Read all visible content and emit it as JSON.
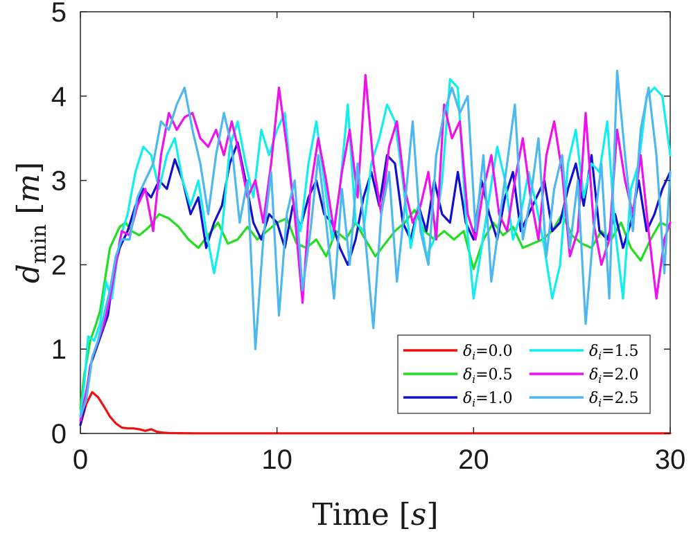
{
  "chart_data": {
    "type": "line",
    "title": "",
    "xlabel": "Time",
    "xlabel_unit": "s",
    "ylabel": "d",
    "ylabel_subscript": "min",
    "ylabel_unit": "m",
    "xlim": [
      0,
      30
    ],
    "ylim": [
      0,
      5
    ],
    "xticks": [
      0,
      10,
      20,
      30
    ],
    "yticks": [
      0,
      1,
      2,
      3,
      4,
      5
    ],
    "grid": false,
    "legend_position": "bottom-right",
    "legend_columns": 2,
    "series": [
      {
        "name": "δi=0.0",
        "symbol": "δ",
        "sub": "i",
        "eq": "=0.0",
        "color": "#ee1111",
        "x": [
          0,
          0.3,
          0.6,
          0.9,
          1.2,
          1.5,
          1.8,
          2.1,
          2.4,
          2.7,
          3.0,
          3.3,
          3.6,
          3.9,
          4.2,
          4.5,
          5,
          6,
          8,
          10,
          15,
          20,
          25,
          30
        ],
        "y": [
          0.1,
          0.35,
          0.49,
          0.43,
          0.32,
          0.2,
          0.12,
          0.07,
          0.06,
          0.06,
          0.05,
          0.03,
          0.05,
          0.02,
          0.01,
          0.005,
          0.003,
          0.002,
          0.002,
          0.002,
          0.002,
          0.002,
          0.002,
          0.002
        ]
      },
      {
        "name": "δi=0.5",
        "symbol": "δ",
        "sub": "i",
        "eq": "=0.5",
        "color": "#22dd22",
        "x": [
          0,
          0.2,
          0.5,
          0.8,
          1.0,
          1.3,
          1.5,
          1.7,
          2.0,
          2.3,
          2.6,
          3.0,
          3.5,
          4.0,
          4.5,
          5.0,
          5.5,
          6.0,
          6.5,
          7.0,
          7.5,
          8.0,
          8.5,
          9.0,
          9.5,
          10.0,
          10.5,
          11.0,
          11.5,
          12.0,
          12.5,
          13.0,
          13.5,
          14.0,
          14.5,
          15.0,
          15.5,
          16.0,
          16.5,
          17.0,
          17.5,
          18.0,
          18.5,
          19.0,
          19.5,
          20.0,
          20.5,
          21.0,
          21.5,
          22.0,
          22.5,
          23.0,
          23.5,
          24.0,
          24.5,
          25.0,
          25.5,
          26.0,
          26.5,
          27.0,
          27.5,
          28.0,
          28.5,
          29.0,
          29.5,
          30.0
        ],
        "y": [
          0.3,
          0.7,
          1.1,
          1.3,
          1.45,
          1.9,
          2.2,
          2.3,
          2.45,
          2.5,
          2.4,
          2.35,
          2.45,
          2.6,
          2.55,
          2.45,
          2.3,
          2.2,
          2.35,
          2.5,
          2.25,
          2.3,
          2.45,
          2.3,
          2.4,
          2.5,
          2.55,
          2.25,
          2.2,
          2.3,
          2.1,
          2.4,
          2.3,
          2.5,
          2.3,
          2.1,
          2.25,
          2.4,
          2.5,
          2.65,
          2.4,
          2.3,
          2.4,
          2.3,
          2.4,
          1.95,
          2.3,
          2.5,
          2.35,
          2.45,
          2.2,
          2.25,
          2.3,
          2.4,
          2.6,
          2.35,
          2.25,
          2.2,
          2.4,
          2.3,
          2.5,
          2.2,
          2.05,
          2.3,
          2.5,
          2.45
        ]
      },
      {
        "name": "δi=1.0",
        "symbol": "δ",
        "sub": "i",
        "eq": "=1.0",
        "color": "#1111cc",
        "x": [
          0,
          0.2,
          0.5,
          0.8,
          1.1,
          1.4,
          1.7,
          2.0,
          2.4,
          2.8,
          3.2,
          3.6,
          4.0,
          4.4,
          4.8,
          5.2,
          5.6,
          6.0,
          6.4,
          6.8,
          7.2,
          7.6,
          8.0,
          8.4,
          8.8,
          9.2,
          9.6,
          10.0,
          10.4,
          10.8,
          11.2,
          11.6,
          12.0,
          12.4,
          12.8,
          13.2,
          13.6,
          14.0,
          14.4,
          14.8,
          15.2,
          15.6,
          16.0,
          16.4,
          16.8,
          17.2,
          17.6,
          18.0,
          18.4,
          18.8,
          19.2,
          19.6,
          20.0,
          20.4,
          20.8,
          21.2,
          21.6,
          22.0,
          22.4,
          22.8,
          23.2,
          23.6,
          24.0,
          24.4,
          24.8,
          25.2,
          25.6,
          26.0,
          26.4,
          26.8,
          27.2,
          27.6,
          28.0,
          28.4,
          28.8,
          29.2,
          29.6,
          30.0
        ],
        "y": [
          0.1,
          0.3,
          0.8,
          1.0,
          1.2,
          1.4,
          1.9,
          2.2,
          2.4,
          2.7,
          2.9,
          2.8,
          3.0,
          2.9,
          3.25,
          3.0,
          2.6,
          2.8,
          2.2,
          2.5,
          2.7,
          3.2,
          3.45,
          3.0,
          2.5,
          2.3,
          2.6,
          2.5,
          2.2,
          2.7,
          2.45,
          2.8,
          3.0,
          2.6,
          2.5,
          2.2,
          2.0,
          2.3,
          2.8,
          3.1,
          2.7,
          3.3,
          3.2,
          2.5,
          2.3,
          2.7,
          2.4,
          3.0,
          2.6,
          2.5,
          3.1,
          2.5,
          2.3,
          3.0,
          2.6,
          2.3,
          2.8,
          3.1,
          2.4,
          2.6,
          2.8,
          3.0,
          2.4,
          2.5,
          2.9,
          3.2,
          2.7,
          3.3,
          2.4,
          2.3,
          2.6,
          2.2,
          2.5,
          3.0,
          2.4,
          2.6,
          2.9,
          3.1
        ]
      },
      {
        "name": "δi=1.5",
        "symbol": "δ",
        "sub": "i",
        "eq": "=1.5",
        "color": "#11eeee",
        "x": [
          0,
          0.2,
          0.4,
          0.7,
          1.0,
          1.3,
          1.6,
          2.0,
          2.4,
          2.8,
          3.2,
          3.6,
          4.0,
          4.4,
          4.8,
          5.2,
          5.6,
          6.0,
          6.4,
          6.8,
          7.2,
          7.6,
          8.0,
          8.4,
          8.8,
          9.2,
          9.6,
          10.0,
          10.4,
          10.8,
          11.2,
          11.6,
          12.0,
          12.4,
          12.8,
          13.2,
          13.6,
          14.0,
          14.4,
          14.8,
          15.2,
          15.6,
          16.0,
          16.4,
          16.8,
          17.2,
          17.6,
          18.0,
          18.4,
          18.8,
          19.2,
          19.6,
          20.0,
          20.4,
          20.8,
          21.2,
          21.6,
          22.0,
          22.4,
          22.8,
          23.2,
          23.6,
          24.0,
          24.4,
          24.8,
          25.2,
          25.6,
          26.0,
          26.4,
          26.8,
          27.2,
          27.6,
          28.0,
          28.4,
          28.8,
          29.2,
          29.6,
          30.0
        ],
        "y": [
          0.2,
          0.6,
          1.15,
          1.1,
          1.3,
          1.8,
          1.6,
          2.3,
          2.6,
          3.1,
          3.4,
          3.3,
          2.9,
          3.3,
          3.5,
          3.0,
          2.7,
          3.0,
          2.4,
          1.9,
          2.4,
          3.4,
          3.7,
          3.2,
          2.8,
          3.6,
          3.3,
          3.6,
          3.8,
          2.8,
          2.4,
          3.2,
          3.7,
          3.0,
          2.3,
          2.9,
          3.9,
          2.5,
          2.4,
          3.2,
          3.5,
          3.9,
          3.7,
          3.0,
          2.2,
          2.7,
          2.1,
          2.3,
          3.0,
          4.2,
          4.1,
          2.6,
          1.6,
          2.2,
          2.8,
          3.4,
          3.0,
          2.3,
          2.6,
          3.1,
          2.7,
          2.2,
          1.6,
          2.0,
          3.2,
          3.6,
          2.8,
          3.2,
          3.1,
          3.7,
          2.4,
          1.6,
          2.9,
          3.2,
          4.0,
          4.1,
          4.0,
          3.3
        ]
      },
      {
        "name": "δi=2.0",
        "symbol": "δ",
        "sub": "i",
        "eq": "=2.0",
        "color": "#ee11ee",
        "x": [
          0,
          0.3,
          0.6,
          0.9,
          1.2,
          1.5,
          1.8,
          2.1,
          2.5,
          2.9,
          3.3,
          3.7,
          4.1,
          4.5,
          4.9,
          5.3,
          5.7,
          6.1,
          6.5,
          6.9,
          7.3,
          7.7,
          8.1,
          8.5,
          8.9,
          9.3,
          9.7,
          10.1,
          10.5,
          10.9,
          11.3,
          11.7,
          12.1,
          12.5,
          12.9,
          13.3,
          13.7,
          14.1,
          14.5,
          14.9,
          15.3,
          15.7,
          16.1,
          16.5,
          16.9,
          17.3,
          17.7,
          18.1,
          18.5,
          18.9,
          19.3,
          19.7,
          20.1,
          20.5,
          20.9,
          21.3,
          21.7,
          22.1,
          22.5,
          22.9,
          23.3,
          23.7,
          24.1,
          24.5,
          24.9,
          25.3,
          25.7,
          26.1,
          26.5,
          26.9,
          27.3,
          27.7,
          28.1,
          28.5,
          28.9,
          29.3,
          29.7,
          30.0
        ],
        "y": [
          0.15,
          0.5,
          0.9,
          1.1,
          1.3,
          1.6,
          2.0,
          2.4,
          2.35,
          2.7,
          2.9,
          2.4,
          3.3,
          3.8,
          3.6,
          3.75,
          3.8,
          3.5,
          3.4,
          3.6,
          3.3,
          3.7,
          3.3,
          2.8,
          3.0,
          2.5,
          3.2,
          4.1,
          3.4,
          2.6,
          1.55,
          2.9,
          3.5,
          3.0,
          2.4,
          3.1,
          3.6,
          2.8,
          4.25,
          3.2,
          2.6,
          3.4,
          3.7,
          2.9,
          2.5,
          2.7,
          3.1,
          2.3,
          3.9,
          3.5,
          3.7,
          2.6,
          2.3,
          2.9,
          3.3,
          2.6,
          2.4,
          3.0,
          3.5,
          2.8,
          2.3,
          3.3,
          3.7,
          3.1,
          2.1,
          2.4,
          3.8,
          2.5,
          2.0,
          2.3,
          3.6,
          3.0,
          2.6,
          3.3,
          2.4,
          1.6,
          2.3,
          2.5
        ]
      },
      {
        "name": "δi=2.5",
        "symbol": "δ",
        "sub": "i",
        "eq": "=2.5",
        "color": "#4db8ee",
        "x": [
          0,
          0.3,
          0.6,
          0.9,
          1.2,
          1.5,
          1.8,
          2.1,
          2.5,
          2.9,
          3.3,
          3.7,
          4.1,
          4.5,
          4.9,
          5.3,
          5.7,
          6.1,
          6.5,
          6.9,
          7.3,
          7.7,
          8.1,
          8.5,
          8.9,
          9.3,
          9.7,
          10.1,
          10.5,
          10.9,
          11.3,
          11.7,
          12.1,
          12.5,
          12.9,
          13.3,
          13.7,
          14.1,
          14.5,
          14.9,
          15.3,
          15.7,
          16.1,
          16.5,
          16.9,
          17.3,
          17.7,
          18.1,
          18.5,
          18.9,
          19.3,
          19.7,
          20.1,
          20.5,
          20.9,
          21.3,
          21.7,
          22.1,
          22.5,
          22.9,
          23.3,
          23.7,
          24.1,
          24.5,
          24.9,
          25.3,
          25.7,
          26.1,
          26.5,
          26.9,
          27.3,
          27.7,
          28.1,
          28.5,
          28.9,
          29.3,
          29.7,
          30.0
        ],
        "y": [
          0.2,
          0.4,
          0.9,
          1.1,
          1.4,
          1.7,
          2.1,
          2.3,
          2.3,
          2.8,
          3.0,
          3.2,
          3.7,
          3.6,
          3.9,
          4.1,
          3.6,
          3.2,
          2.6,
          3.3,
          3.8,
          3.4,
          2.5,
          3.0,
          1.0,
          2.3,
          3.1,
          1.4,
          2.6,
          3.0,
          1.7,
          2.4,
          3.3,
          2.5,
          1.6,
          2.9,
          2.0,
          3.2,
          2.3,
          1.25,
          2.6,
          3.1,
          1.8,
          2.7,
          3.7,
          2.4,
          2.0,
          3.3,
          3.8,
          4.1,
          3.8,
          4.0,
          2.4,
          3.3,
          1.8,
          2.5,
          3.2,
          3.9,
          2.3,
          2.8,
          3.5,
          2.1,
          2.9,
          3.3,
          2.2,
          3.0,
          1.3,
          2.4,
          3.2,
          1.6,
          4.3,
          3.3,
          2.4,
          3.6,
          4.1,
          3.3,
          1.9,
          3.1
        ]
      }
    ]
  }
}
